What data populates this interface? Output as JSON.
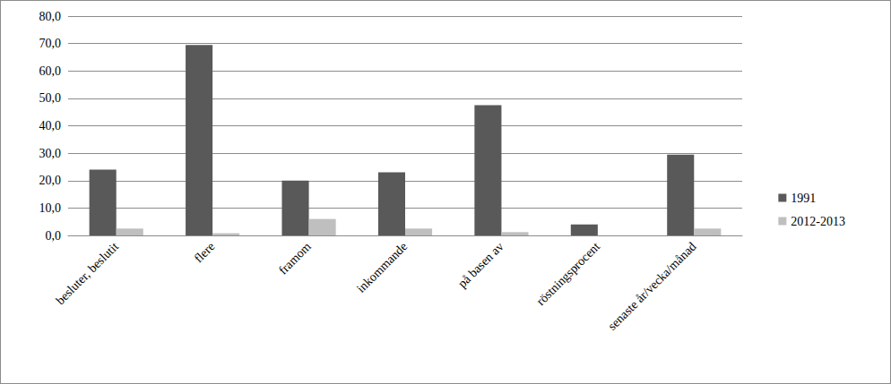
{
  "chart_data": {
    "type": "bar",
    "categories": [
      "besluter, beslutit",
      "flere",
      "framom",
      "inkommande",
      "på basen av",
      "röstningsprocent",
      "senaste år/vecka/månad"
    ],
    "series": [
      {
        "name": "1991",
        "color": "#595959",
        "values": [
          24.0,
          69.5,
          20.0,
          23.0,
          47.5,
          4.0,
          29.5
        ]
      },
      {
        "name": "2012-2013",
        "color": "#bfbfbf",
        "values": [
          2.5,
          0.8,
          6.0,
          2.5,
          1.2,
          0.0,
          2.5
        ]
      }
    ],
    "ylim": [
      0,
      80
    ],
    "yticks": [
      {
        "value": 0,
        "label": "0,0"
      },
      {
        "value": 10,
        "label": "10,0"
      },
      {
        "value": 20,
        "label": "20,0"
      },
      {
        "value": 30,
        "label": "30,0"
      },
      {
        "value": 40,
        "label": "40,0"
      },
      {
        "value": 50,
        "label": "50,0"
      },
      {
        "value": 60,
        "label": "60,0"
      },
      {
        "value": 70,
        "label": "70,0"
      },
      {
        "value": 80,
        "label": "80,0"
      }
    ],
    "grid": true,
    "legend": "right"
  }
}
